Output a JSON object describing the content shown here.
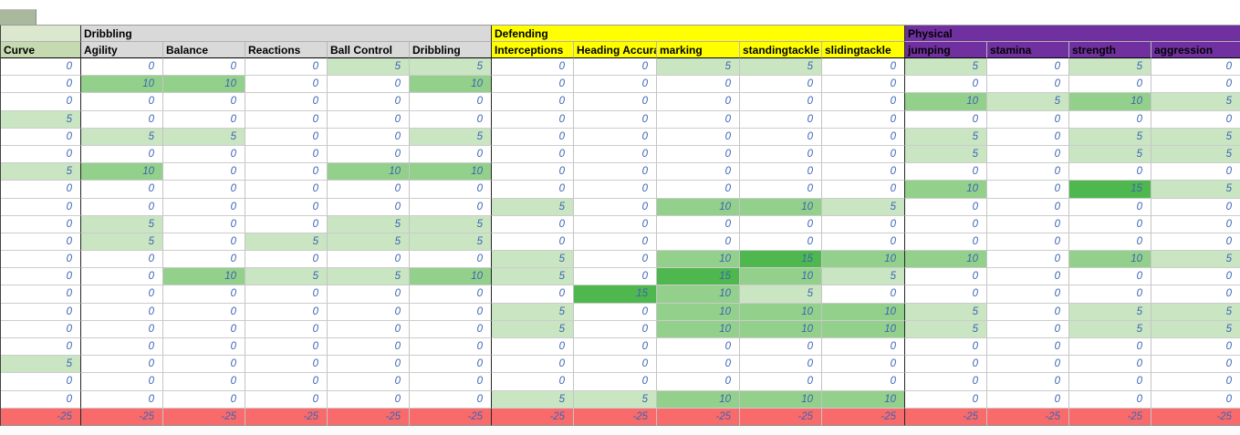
{
  "table": {
    "groups": [
      {
        "label": "",
        "group_color": "#dce8cd",
        "header_color": "#c5dab0",
        "columns": [
          "Curve"
        ]
      },
      {
        "label": "Dribbling",
        "group_color": "#d9d9d9",
        "header_color": "#d9d9d9",
        "columns": [
          "Agility",
          "Balance",
          "Reactions",
          "Ball Control",
          "Dribbling"
        ]
      },
      {
        "label": "Defending",
        "group_color": "#ffff00",
        "header_color": "#ffff00",
        "columns": [
          "Interceptions",
          "Heading Accura",
          "marking",
          "standingtackle",
          "slidingtackle"
        ]
      },
      {
        "label": "Physical",
        "group_color": "#7030a0",
        "header_color": "#7030a0",
        "columns": [
          "jumping",
          "stamina",
          "strength",
          "aggression"
        ]
      }
    ],
    "rows": [
      [
        0,
        0,
        0,
        0,
        5,
        5,
        0,
        0,
        5,
        5,
        0,
        5,
        0,
        5,
        0
      ],
      [
        0,
        10,
        10,
        0,
        0,
        10,
        0,
        0,
        0,
        0,
        0,
        0,
        0,
        0,
        0
      ],
      [
        0,
        0,
        0,
        0,
        0,
        0,
        0,
        0,
        0,
        0,
        0,
        10,
        5,
        10,
        5
      ],
      [
        5,
        0,
        0,
        0,
        0,
        0,
        0,
        0,
        0,
        0,
        0,
        0,
        0,
        0,
        0
      ],
      [
        0,
        5,
        5,
        0,
        0,
        5,
        0,
        0,
        0,
        0,
        0,
        5,
        0,
        5,
        5
      ],
      [
        0,
        0,
        0,
        0,
        0,
        0,
        0,
        0,
        0,
        0,
        0,
        5,
        0,
        5,
        5
      ],
      [
        5,
        10,
        0,
        0,
        10,
        10,
        0,
        0,
        0,
        0,
        0,
        0,
        0,
        0,
        0
      ],
      [
        0,
        0,
        0,
        0,
        0,
        0,
        0,
        0,
        0,
        0,
        0,
        10,
        0,
        15,
        5
      ],
      [
        0,
        0,
        0,
        0,
        0,
        0,
        5,
        0,
        10,
        10,
        5,
        0,
        0,
        0,
        0
      ],
      [
        0,
        5,
        0,
        0,
        5,
        5,
        0,
        0,
        0,
        0,
        0,
        0,
        0,
        0,
        0
      ],
      [
        0,
        5,
        0,
        5,
        5,
        5,
        0,
        0,
        0,
        0,
        0,
        0,
        0,
        0,
        0
      ],
      [
        0,
        0,
        0,
        0,
        0,
        0,
        5,
        0,
        10,
        15,
        10,
        10,
        0,
        10,
        5
      ],
      [
        0,
        0,
        10,
        5,
        5,
        10,
        5,
        0,
        15,
        10,
        5,
        0,
        0,
        0,
        0
      ],
      [
        0,
        0,
        0,
        0,
        0,
        0,
        0,
        15,
        10,
        5,
        0,
        0,
        0,
        0,
        0
      ],
      [
        0,
        0,
        0,
        0,
        0,
        0,
        5,
        0,
        10,
        10,
        10,
        5,
        0,
        5,
        5
      ],
      [
        0,
        0,
        0,
        0,
        0,
        0,
        5,
        0,
        10,
        10,
        10,
        5,
        0,
        5,
        5
      ],
      [
        0,
        0,
        0,
        0,
        0,
        0,
        0,
        0,
        0,
        0,
        0,
        0,
        0,
        0,
        0
      ],
      [
        5,
        0,
        0,
        0,
        0,
        0,
        0,
        0,
        0,
        0,
        0,
        0,
        0,
        0,
        0
      ],
      [
        0,
        0,
        0,
        0,
        0,
        0,
        0,
        0,
        0,
        0,
        0,
        0,
        0,
        0,
        0
      ],
      [
        0,
        0,
        0,
        0,
        0,
        0,
        5,
        5,
        10,
        10,
        10,
        0,
        0,
        0,
        0
      ]
    ],
    "footer_row": [
      -25,
      -25,
      -25,
      -25,
      -25,
      -25,
      -25,
      -25,
      -25,
      -25,
      -25,
      -25,
      -25,
      -25,
      -25
    ],
    "value_colors": {
      "0": "#ffffff",
      "5": "#c9e5c2",
      "10": "#93d08b",
      "15": "#4eb84e"
    },
    "footer_color": "#f96b6b"
  }
}
